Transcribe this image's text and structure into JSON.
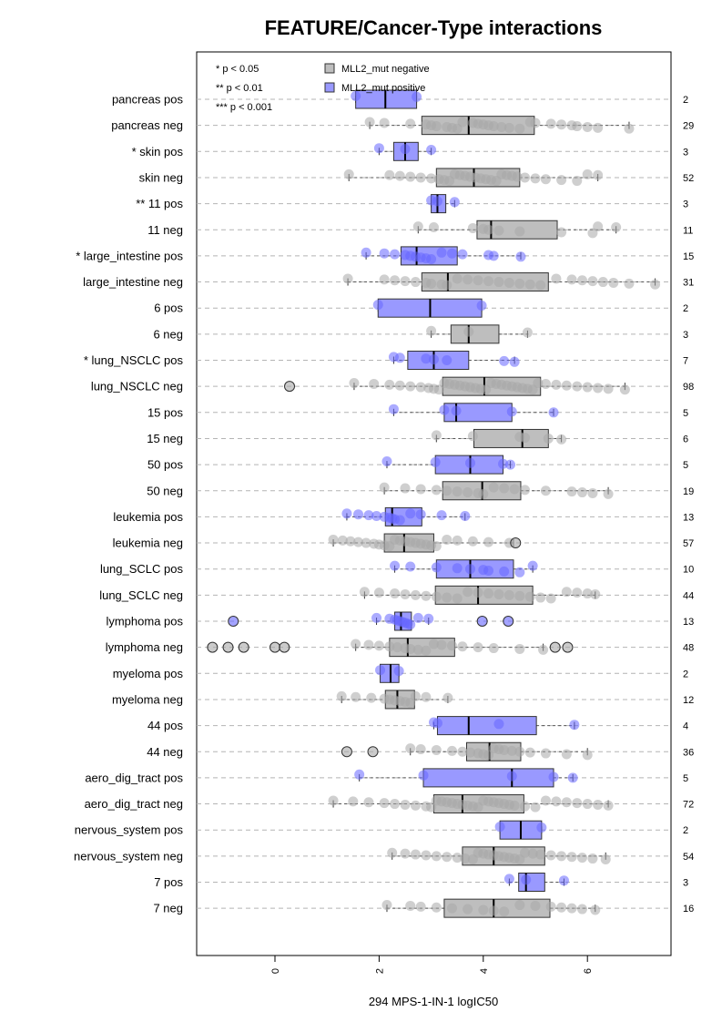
{
  "chart_data": {
    "type": "boxplot",
    "title": "FEATURE/Cancer-Type interactions",
    "xlabel": "294 MPS-1-IN-1 logIC50",
    "xlim": [
      -1.5,
      7.5
    ],
    "xticks": [
      "0",
      "2",
      "4",
      "6"
    ],
    "legend": {
      "placement": "top-left",
      "significance": [
        "* p < 0.05",
        "** p < 0.01",
        "*** p < 0.001"
      ],
      "groups": [
        {
          "name": "MLL2_mut negative",
          "color": "#bebebe"
        },
        {
          "name": "MLL2_mut positive",
          "color": "#9999ff"
        }
      ]
    },
    "colors": {
      "negative_fill": "#bebebe",
      "positive_fill": "#9999ff",
      "negative_point": "#a8a8a8",
      "positive_point": "#6666ff",
      "grid": "#b4b4b4"
    },
    "rows": [
      {
        "label": "pancreas pos",
        "n": "2",
        "group": "pos",
        "q1": 1.55,
        "median": 2.12,
        "q3": 2.72,
        "wlo": 1.55,
        "whi": 2.72,
        "points": [
          1.55,
          2.72
        ],
        "outliers": []
      },
      {
        "label": "pancreas neg",
        "n": "29",
        "group": "neg",
        "q1": 2.82,
        "median": 3.72,
        "q3": 4.98,
        "wlo": 1.82,
        "whi": 6.8,
        "points": [
          1.82,
          2.1,
          2.6,
          2.9,
          3.0,
          3.1,
          3.3,
          3.4,
          3.5,
          3.6,
          3.8,
          3.9,
          4.0,
          4.1,
          4.2,
          4.35,
          4.5,
          4.7,
          4.9,
          5.0,
          5.3,
          5.5,
          5.7,
          5.8,
          6.0,
          6.2,
          6.8
        ],
        "outliers": []
      },
      {
        "label": "* skin pos",
        "n": "3",
        "group": "pos",
        "q1": 2.28,
        "median": 2.5,
        "q3": 2.75,
        "wlo": 2.0,
        "whi": 3.0,
        "points": [
          2.0,
          2.5,
          3.0
        ],
        "outliers": []
      },
      {
        "label": "skin neg",
        "n": "52",
        "group": "neg",
        "q1": 3.1,
        "median": 3.82,
        "q3": 4.7,
        "wlo": 1.42,
        "whi": 6.2,
        "points": [
          1.42,
          2.2,
          2.4,
          2.6,
          2.8,
          3.0,
          3.15,
          3.25,
          3.35,
          3.45,
          3.55,
          3.65,
          3.75,
          3.85,
          3.95,
          4.05,
          4.15,
          4.25,
          4.35,
          4.45,
          4.55,
          4.65,
          4.8,
          5.0,
          5.2,
          5.5,
          5.8,
          6.0,
          6.2
        ],
        "outliers": []
      },
      {
        "label": "** 11 pos",
        "n": "3",
        "group": "pos",
        "q1": 3.0,
        "median": 3.12,
        "q3": 3.28,
        "wlo": 3.0,
        "whi": 3.45,
        "points": [
          3.0,
          3.12,
          3.45
        ],
        "outliers": []
      },
      {
        "label": "11 neg",
        "n": "11",
        "group": "neg",
        "q1": 3.88,
        "median": 4.15,
        "q3": 5.42,
        "wlo": 2.75,
        "whi": 6.55,
        "points": [
          2.75,
          3.05,
          3.8,
          4.0,
          4.1,
          4.3,
          4.7,
          5.5,
          6.1,
          6.2,
          6.55
        ],
        "outliers": []
      },
      {
        "label": "* large_intestine pos",
        "n": "15",
        "group": "pos",
        "q1": 2.42,
        "median": 2.72,
        "q3": 3.5,
        "wlo": 1.75,
        "whi": 4.72,
        "points": [
          1.75,
          2.1,
          2.3,
          2.5,
          2.6,
          2.7,
          2.8,
          2.9,
          3.0,
          3.2,
          3.4,
          3.6,
          4.1,
          4.2,
          4.72
        ],
        "outliers": []
      },
      {
        "label": "large_intestine neg",
        "n": "31",
        "group": "neg",
        "q1": 2.82,
        "median": 3.32,
        "q3": 5.25,
        "wlo": 1.4,
        "whi": 7.3,
        "points": [
          1.4,
          2.1,
          2.3,
          2.5,
          2.7,
          2.9,
          3.0,
          3.2,
          3.3,
          3.5,
          3.7,
          3.9,
          4.1,
          4.3,
          4.5,
          4.7,
          4.9,
          5.1,
          5.4,
          5.7,
          5.9,
          6.1,
          6.3,
          6.5,
          6.8,
          7.3
        ],
        "outliers": []
      },
      {
        "label": "6 pos",
        "n": "2",
        "group": "pos",
        "q1": 1.98,
        "median": 2.98,
        "q3": 3.97,
        "wlo": 1.98,
        "whi": 3.97,
        "points": [
          1.98,
          3.97
        ],
        "outliers": []
      },
      {
        "label": "6 neg",
        "n": "3",
        "group": "neg",
        "q1": 3.38,
        "median": 3.72,
        "q3": 4.3,
        "wlo": 3.0,
        "whi": 4.85,
        "points": [
          3.0,
          3.72,
          4.85
        ],
        "outliers": []
      },
      {
        "label": "* lung_NSCLC pos",
        "n": "7",
        "group": "pos",
        "q1": 2.55,
        "median": 3.05,
        "q3": 3.72,
        "wlo": 2.28,
        "whi": 4.6,
        "points": [
          2.28,
          2.4,
          2.9,
          3.05,
          3.3,
          4.4,
          4.6
        ],
        "outliers": []
      },
      {
        "label": "lung_NSCLC neg",
        "n": "98",
        "group": "neg",
        "q1": 3.22,
        "median": 4.02,
        "q3": 5.1,
        "wlo": 1.52,
        "whi": 6.72,
        "points": [
          1.52,
          1.9,
          2.2,
          2.4,
          2.6,
          2.8,
          2.95,
          3.05,
          3.15,
          3.25,
          3.35,
          3.45,
          3.55,
          3.65,
          3.75,
          3.85,
          3.95,
          4.05,
          4.15,
          4.25,
          4.35,
          4.45,
          4.55,
          4.65,
          4.75,
          4.85,
          4.95,
          5.05,
          5.2,
          5.4,
          5.6,
          5.8,
          6.0,
          6.2,
          6.4,
          6.72
        ],
        "outliers": [
          0.28
        ]
      },
      {
        "label": "15 pos",
        "n": "5",
        "group": "pos",
        "q1": 3.25,
        "median": 3.48,
        "q3": 4.55,
        "wlo": 2.28,
        "whi": 5.35,
        "points": [
          2.28,
          3.25,
          3.48,
          4.55,
          5.35
        ],
        "outliers": []
      },
      {
        "label": "15 neg",
        "n": "6",
        "group": "neg",
        "q1": 3.82,
        "median": 4.75,
        "q3": 5.25,
        "wlo": 3.1,
        "whi": 5.5,
        "points": [
          3.1,
          3.8,
          4.7,
          4.8,
          5.25,
          5.5
        ],
        "outliers": []
      },
      {
        "label": "50 pos",
        "n": "5",
        "group": "pos",
        "q1": 3.08,
        "median": 3.75,
        "q3": 4.38,
        "wlo": 2.15,
        "whi": 4.52,
        "points": [
          2.15,
          3.08,
          3.75,
          4.38,
          4.52
        ],
        "outliers": []
      },
      {
        "label": "50 neg",
        "n": "19",
        "group": "neg",
        "q1": 3.22,
        "median": 3.98,
        "q3": 4.72,
        "wlo": 2.1,
        "whi": 6.4,
        "points": [
          2.1,
          2.5,
          2.8,
          3.1,
          3.3,
          3.5,
          3.7,
          3.9,
          4.0,
          4.2,
          4.4,
          4.6,
          4.8,
          5.2,
          5.7,
          5.9,
          6.1,
          6.4
        ],
        "outliers": []
      },
      {
        "label": "leukemia pos",
        "n": "13",
        "group": "pos",
        "q1": 2.12,
        "median": 2.25,
        "q3": 2.82,
        "wlo": 1.38,
        "whi": 3.65,
        "points": [
          1.38,
          1.6,
          1.8,
          1.95,
          2.1,
          2.2,
          2.25,
          2.3,
          2.4,
          2.6,
          2.8,
          3.2,
          3.65
        ],
        "outliers": []
      },
      {
        "label": "leukemia neg",
        "n": "57",
        "group": "neg",
        "q1": 2.1,
        "median": 2.48,
        "q3": 3.05,
        "wlo": 1.12,
        "whi": 4.58,
        "points": [
          1.12,
          1.3,
          1.45,
          1.6,
          1.75,
          1.9,
          2.0,
          2.1,
          2.2,
          2.3,
          2.4,
          2.5,
          2.6,
          2.7,
          2.8,
          2.9,
          3.0,
          3.1,
          3.3,
          3.5,
          3.8,
          4.1,
          4.5
        ],
        "outliers": [
          4.62
        ]
      },
      {
        "label": "lung_SCLC pos",
        "n": "10",
        "group": "pos",
        "q1": 3.1,
        "median": 3.75,
        "q3": 4.58,
        "wlo": 2.3,
        "whi": 4.95,
        "points": [
          2.3,
          2.6,
          3.1,
          3.5,
          3.75,
          4.0,
          4.1,
          4.4,
          4.7,
          4.95
        ],
        "outliers": []
      },
      {
        "label": "lung_SCLC neg",
        "n": "44",
        "group": "neg",
        "q1": 3.08,
        "median": 3.9,
        "q3": 4.95,
        "wlo": 1.72,
        "whi": 6.15,
        "points": [
          1.72,
          2.0,
          2.3,
          2.5,
          2.7,
          2.9,
          3.1,
          3.3,
          3.5,
          3.7,
          3.9,
          4.1,
          4.3,
          4.5,
          4.7,
          4.9,
          5.1,
          5.3,
          5.6,
          5.8,
          6.0,
          6.15
        ],
        "outliers": []
      },
      {
        "label": "lymphoma pos",
        "n": "13",
        "group": "pos",
        "q1": 2.3,
        "median": 2.42,
        "q3": 2.62,
        "wlo": 1.95,
        "whi": 2.95,
        "points": [
          1.95,
          2.2,
          2.3,
          2.35,
          2.4,
          2.45,
          2.5,
          2.55,
          2.6,
          2.75,
          2.95
        ],
        "outliers": [
          -0.8,
          3.98,
          4.48
        ]
      },
      {
        "label": "lymphoma neg",
        "n": "48",
        "group": "neg",
        "q1": 2.2,
        "median": 2.55,
        "q3": 3.45,
        "wlo": 1.55,
        "whi": 5.15,
        "points": [
          1.55,
          1.8,
          2.0,
          2.2,
          2.35,
          2.5,
          2.6,
          2.75,
          2.9,
          3.05,
          3.2,
          3.4,
          3.6,
          3.9,
          4.2,
          4.7,
          5.15
        ],
        "outliers": [
          -1.2,
          -0.9,
          -0.6,
          0.0,
          0.18,
          5.38,
          5.62
        ]
      },
      {
        "label": "myeloma pos",
        "n": "2",
        "group": "pos",
        "q1": 2.02,
        "median": 2.22,
        "q3": 2.38,
        "wlo": 2.02,
        "whi": 2.38,
        "points": [
          2.02,
          2.38
        ],
        "outliers": []
      },
      {
        "label": "myeloma neg",
        "n": "12",
        "group": "neg",
        "q1": 2.12,
        "median": 2.35,
        "q3": 2.68,
        "wlo": 1.28,
        "whi": 3.32,
        "points": [
          1.28,
          1.55,
          1.85,
          2.1,
          2.2,
          2.3,
          2.4,
          2.5,
          2.6,
          2.7,
          2.9,
          3.32
        ],
        "outliers": []
      },
      {
        "label": "44 pos",
        "n": "4",
        "group": "pos",
        "q1": 3.12,
        "median": 3.72,
        "q3": 5.02,
        "wlo": 3.05,
        "whi": 5.75,
        "points": [
          3.05,
          3.12,
          4.3,
          5.75
        ],
        "outliers": []
      },
      {
        "label": "44 neg",
        "n": "36",
        "group": "neg",
        "q1": 3.68,
        "median": 4.12,
        "q3": 4.72,
        "wlo": 2.6,
        "whi": 6.0,
        "points": [
          2.6,
          2.8,
          3.1,
          3.4,
          3.6,
          3.75,
          3.9,
          4.0,
          4.1,
          4.2,
          4.3,
          4.4,
          4.55,
          4.7,
          4.9,
          5.2,
          5.6,
          6.0
        ],
        "outliers": [
          1.38,
          1.88
        ]
      },
      {
        "label": "aero_dig_tract pos",
        "n": "5",
        "group": "pos",
        "q1": 2.85,
        "median": 4.55,
        "q3": 5.35,
        "wlo": 1.62,
        "whi": 5.72,
        "points": [
          1.62,
          2.85,
          4.55,
          5.35,
          5.72
        ],
        "outliers": []
      },
      {
        "label": "aero_dig_tract neg",
        "n": "72",
        "group": "neg",
        "q1": 3.05,
        "median": 3.6,
        "q3": 4.78,
        "wlo": 1.12,
        "whi": 6.4,
        "points": [
          1.12,
          1.5,
          1.8,
          2.1,
          2.3,
          2.5,
          2.7,
          2.9,
          3.0,
          3.1,
          3.2,
          3.3,
          3.4,
          3.5,
          3.6,
          3.7,
          3.8,
          3.9,
          4.0,
          4.1,
          4.2,
          4.3,
          4.4,
          4.5,
          4.6,
          4.8,
          5.0,
          5.2,
          5.4,
          5.6,
          5.8,
          6.0,
          6.2,
          6.4
        ],
        "outliers": []
      },
      {
        "label": "nervous_system pos",
        "n": "2",
        "group": "pos",
        "q1": 4.32,
        "median": 4.72,
        "q3": 5.12,
        "wlo": 4.32,
        "whi": 5.12,
        "points": [
          4.32,
          5.12
        ],
        "outliers": []
      },
      {
        "label": "nervous_system neg",
        "n": "54",
        "group": "neg",
        "q1": 3.6,
        "median": 4.2,
        "q3": 5.18,
        "wlo": 2.25,
        "whi": 6.35,
        "points": [
          2.25,
          2.5,
          2.7,
          2.9,
          3.1,
          3.3,
          3.5,
          3.65,
          3.8,
          3.9,
          4.0,
          4.1,
          4.2,
          4.3,
          4.4,
          4.5,
          4.6,
          4.7,
          4.8,
          4.95,
          5.1,
          5.3,
          5.5,
          5.7,
          5.9,
          6.1,
          6.35
        ],
        "outliers": []
      },
      {
        "label": "7 pos",
        "n": "3",
        "group": "pos",
        "q1": 4.68,
        "median": 4.82,
        "q3": 5.18,
        "wlo": 4.5,
        "whi": 5.55,
        "points": [
          4.5,
          4.82,
          5.55
        ],
        "outliers": []
      },
      {
        "label": "7 neg",
        "n": "16",
        "group": "neg",
        "q1": 3.25,
        "median": 4.2,
        "q3": 5.28,
        "wlo": 2.15,
        "whi": 6.15,
        "points": [
          2.15,
          2.6,
          2.8,
          3.1,
          3.4,
          3.7,
          4.0,
          4.2,
          4.4,
          4.7,
          5.0,
          5.3,
          5.5,
          5.7,
          5.9,
          6.15
        ],
        "outliers": []
      }
    ]
  }
}
